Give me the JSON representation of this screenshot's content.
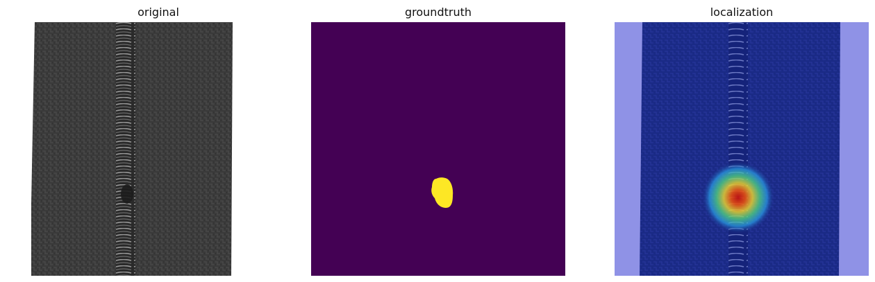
{
  "figure": {
    "panels": [
      {
        "title": "original",
        "content": "grayscale photo of a zipper with a small defect near the lower middle"
      },
      {
        "title": "groundtruth",
        "content": "binary segmentation mask"
      },
      {
        "title": "localization",
        "content": "anomaly heatmap overlaid on the zipper photo"
      }
    ]
  },
  "colors": {
    "mask_background": "#440154",
    "mask_foreground": "#fde725",
    "heatmap_cold": "#0000ff",
    "heatmap_hot": "#ff0000"
  }
}
